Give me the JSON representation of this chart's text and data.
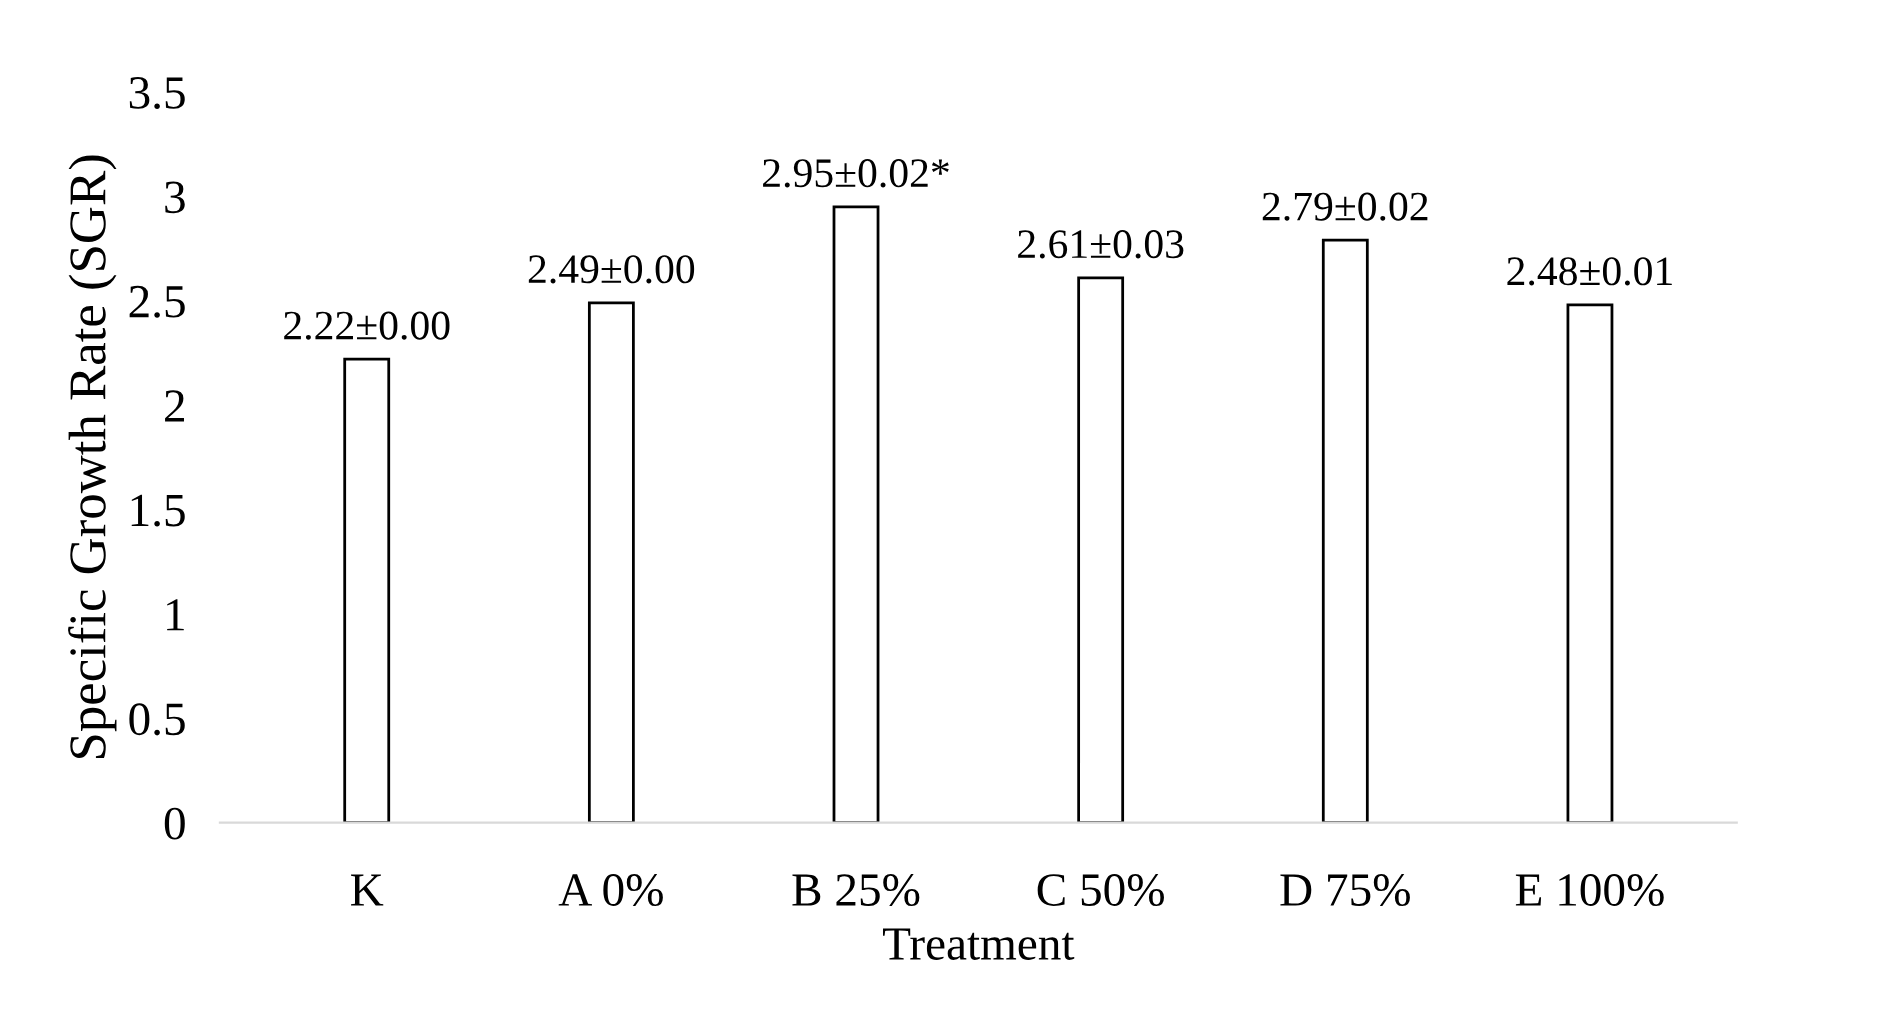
{
  "chart_data": {
    "type": "bar",
    "xlabel": "Treatment",
    "ylabel": "Specific Growth Rate (SGR)",
    "categories": [
      "K",
      "A 0%",
      "B 25%",
      "C 50%",
      "D 75%",
      "E 100%"
    ],
    "values": [
      2.22,
      2.49,
      2.95,
      2.61,
      2.79,
      2.48
    ],
    "value_labels": [
      "2.22±0.00",
      "2.49±0.00",
      "2.95±0.02*",
      "2.61±0.03",
      "2.79±0.02",
      "2.48±0.01"
    ],
    "color": "#ffffff",
    "ylim": [
      0,
      3.5
    ],
    "yticks": [
      0,
      0.5,
      1,
      1.5,
      2,
      2.5,
      3,
      3.5
    ],
    "grid": false,
    "legend": false
  }
}
